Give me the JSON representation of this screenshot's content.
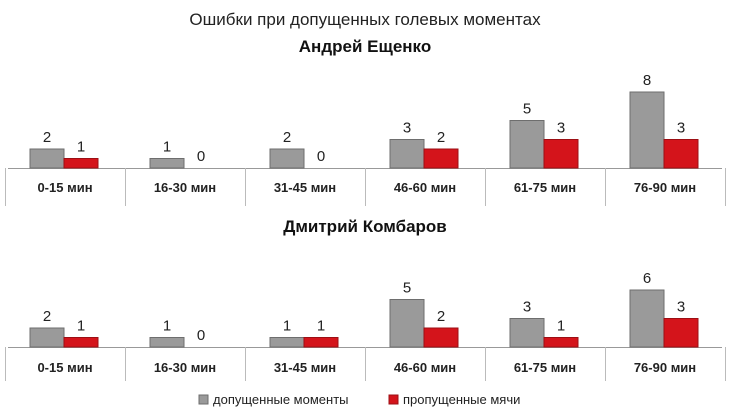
{
  "title": "Ошибки при допущенных голевых моментах",
  "legend": [
    {
      "label": "допущенные моменты",
      "color": "#9a9a9a"
    },
    {
      "label": "пропущенные мячи",
      "color": "#d4141b"
    }
  ],
  "chart_data": [
    {
      "type": "bar",
      "title": "Андрей Ещенко",
      "categories": [
        "0-15 мин",
        "16-30 мин",
        "31-45 мин",
        "46-60 мин",
        "61-75 мин",
        "76-90 мин"
      ],
      "series": [
        {
          "name": "допущенные моменты",
          "values": [
            2,
            1,
            2,
            3,
            5,
            8
          ]
        },
        {
          "name": "пропущенные мячи",
          "values": [
            1,
            0,
            0,
            2,
            3,
            3
          ]
        }
      ],
      "ylim": [
        0,
        8
      ]
    },
    {
      "type": "bar",
      "title": "Дмитрий Комбаров",
      "categories": [
        "0-15 мин",
        "16-30 мин",
        "31-45 мин",
        "46-60 мин",
        "61-75 мин",
        "76-90 мин"
      ],
      "series": [
        {
          "name": "допущенные моменты",
          "values": [
            2,
            1,
            1,
            5,
            3,
            6
          ]
        },
        {
          "name": "пропущенные мячи",
          "values": [
            1,
            0,
            1,
            2,
            1,
            3
          ]
        }
      ],
      "ylim": [
        0,
        6
      ]
    }
  ]
}
